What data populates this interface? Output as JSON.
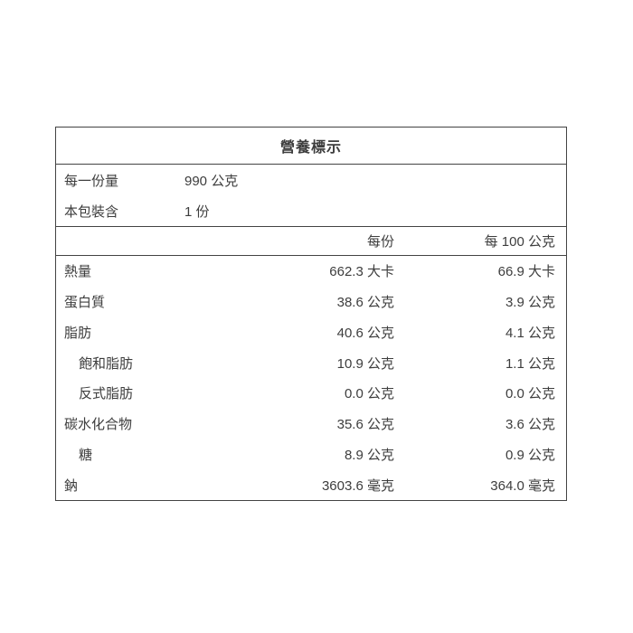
{
  "table": {
    "title": "營養標示",
    "serving_info": [
      {
        "label": "每一份量",
        "value": "990 公克"
      },
      {
        "label": "本包裝含",
        "value": "1 份"
      }
    ],
    "column_headers": {
      "per_serving": "每份",
      "per_100g": "每 100 公克"
    },
    "rows": [
      {
        "label": "熱量",
        "per_serving": "662.3 大卡",
        "per_100g": "66.9 大卡"
      },
      {
        "label": "蛋白質",
        "per_serving": "38.6 公克",
        "per_100g": "3.9 公克"
      },
      {
        "label": "脂肪",
        "per_serving": "40.6 公克",
        "per_100g": "4.1 公克"
      },
      {
        "label": "飽和脂肪",
        "per_serving": "10.9 公克",
        "per_100g": "1.1 公克"
      },
      {
        "label": "反式脂肪",
        "per_serving": "0.0 公克",
        "per_100g": "0.0 公克"
      },
      {
        "label": "碳水化合物",
        "per_serving": "35.6 公克",
        "per_100g": "3.6 公克"
      },
      {
        "label": "糖",
        "per_serving": "8.9 公克",
        "per_100g": "0.9 公克"
      },
      {
        "label": "鈉",
        "per_serving": "3603.6 毫克",
        "per_100g": "364.0 毫克"
      }
    ],
    "colors": {
      "text": "#3d3d3d",
      "border": "#434343",
      "background": "#ffffff"
    }
  }
}
